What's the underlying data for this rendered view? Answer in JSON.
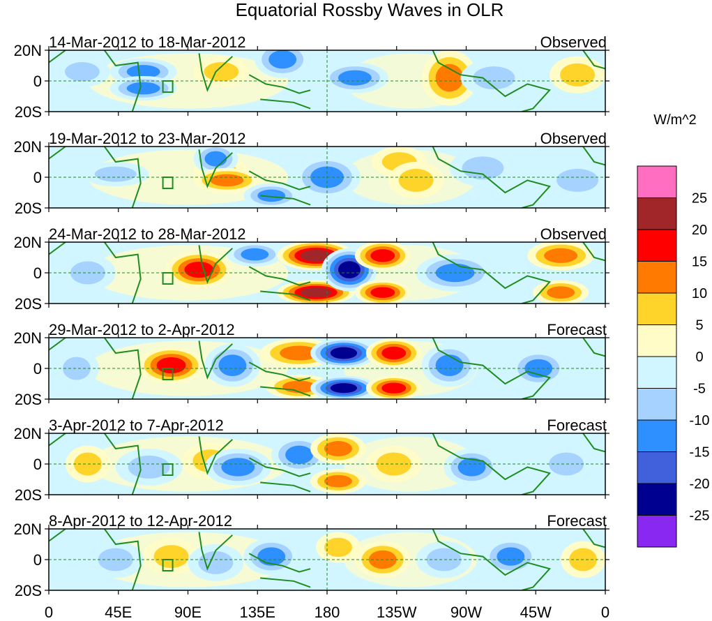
{
  "title": "Equatorial Rossby Waves in OLR",
  "panels": [
    {
      "date_range": "14-Mar-2012 to 18-Mar-2012",
      "status": "Observed"
    },
    {
      "date_range": "19-Mar-2012 to 23-Mar-2012",
      "status": "Observed"
    },
    {
      "date_range": "24-Mar-2012 to 28-Mar-2012",
      "status": "Observed"
    },
    {
      "date_range": "29-Mar-2012 to 2-Apr-2012",
      "status": "Forecast"
    },
    {
      "date_range": "3-Apr-2012 to 7-Apr-2012",
      "status": "Forecast"
    },
    {
      "date_range": "8-Apr-2012 to 12-Apr-2012",
      "status": "Forecast"
    }
  ],
  "lat_labels": [
    "20N",
    "0",
    "20S"
  ],
  "lon_labels": [
    "0",
    "45E",
    "90E",
    "135E",
    "180",
    "135W",
    "90W",
    "45W",
    "0"
  ],
  "colorbar": {
    "units": "W/m^2",
    "labels": [
      "25",
      "20",
      "15",
      "10",
      "5",
      "0",
      "-5",
      "-10",
      "-15",
      "-20",
      "-25"
    ],
    "colors": [
      "#ff6ec0",
      "#a0262a",
      "#ff0000",
      "#ff7a00",
      "#ffd42a",
      "#fffcc8",
      "#d2f6ff",
      "#a6d2ff",
      "#2e90ff",
      "#4060dc",
      "#000090",
      "#8828f0"
    ]
  },
  "colors": {
    "land_outline": "#1e8c1e",
    "dashed_lines": "#1e8c1e"
  }
}
